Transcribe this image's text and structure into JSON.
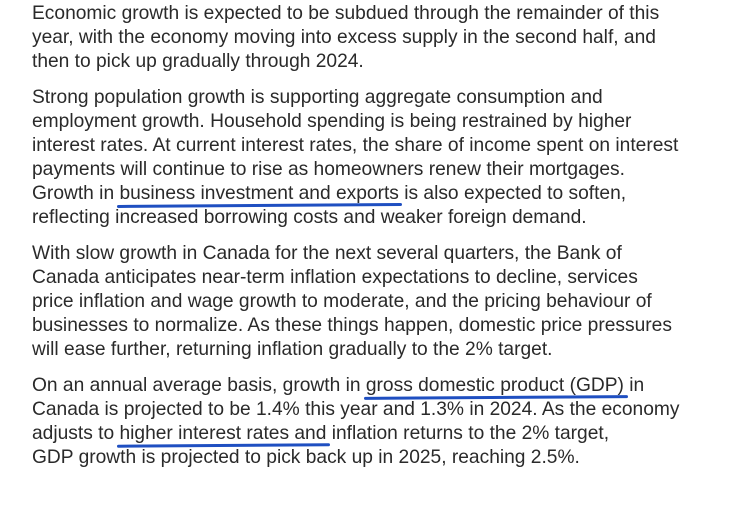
{
  "paragraphs": [
    {
      "lines": [
        {
          "segments": [
            {
              "text": "Economic growth is expected to be subdued through the remainder of this"
            }
          ]
        },
        {
          "segments": [
            {
              "text": "year, with the economy moving into excess supply in the second half, and"
            }
          ]
        },
        {
          "segments": [
            {
              "text": "then to pick up gradually through 2024."
            }
          ]
        }
      ]
    },
    {
      "lines": [
        {
          "segments": [
            {
              "text": "Strong population growth is supporting aggregate consumption and"
            }
          ]
        },
        {
          "segments": [
            {
              "text": "employment growth. Household spending is being restrained by higher"
            }
          ]
        },
        {
          "segments": [
            {
              "text": "interest rates. At current interest rates, the share of income spent on interest"
            }
          ]
        },
        {
          "segments": [
            {
              "text": "payments will continue to rise as homeowners renew their mortgages."
            }
          ]
        },
        {
          "segments": [
            {
              "text": "Growth in "
            },
            {
              "text": "business investment and exports",
              "highlight": true
            },
            {
              "text": " is also expected to soften,"
            }
          ]
        },
        {
          "segments": [
            {
              "text": "reflecting increased borrowing costs and weaker foreign demand."
            }
          ]
        }
      ]
    },
    {
      "lines": [
        {
          "segments": [
            {
              "text": "With slow growth in Canada for the next several quarters, the Bank of"
            }
          ]
        },
        {
          "segments": [
            {
              "text": "Canada anticipates near-term inflation expectations to decline, services"
            }
          ]
        },
        {
          "segments": [
            {
              "text": "price inflation and wage growth to moderate, and the pricing behaviour of"
            }
          ]
        },
        {
          "segments": [
            {
              "text": "businesses to normalize. As these things happen, domestic price pressures"
            }
          ]
        },
        {
          "segments": [
            {
              "text": "will ease further, returning inflation gradually to the 2% target."
            }
          ]
        }
      ]
    },
    {
      "lines": [
        {
          "segments": [
            {
              "text": "On an annual average basis, growth in "
            },
            {
              "text": "gross domestic product (GDP)",
              "highlight": true
            },
            {
              "text": " in"
            }
          ]
        },
        {
          "segments": [
            {
              "text": "Canada is projected to be 1.4% this year and 1.3% in 2024. As the economy"
            }
          ]
        },
        {
          "segments": [
            {
              "text": "adjusts to "
            },
            {
              "text": "higher interest rates and",
              "highlight": true
            },
            {
              "text": " inflation returns to the 2% target,"
            }
          ]
        },
        {
          "segments": [
            {
              "text": "GDP growth is projected to pick back up in 2025, reaching 2.5%."
            }
          ]
        }
      ]
    }
  ]
}
